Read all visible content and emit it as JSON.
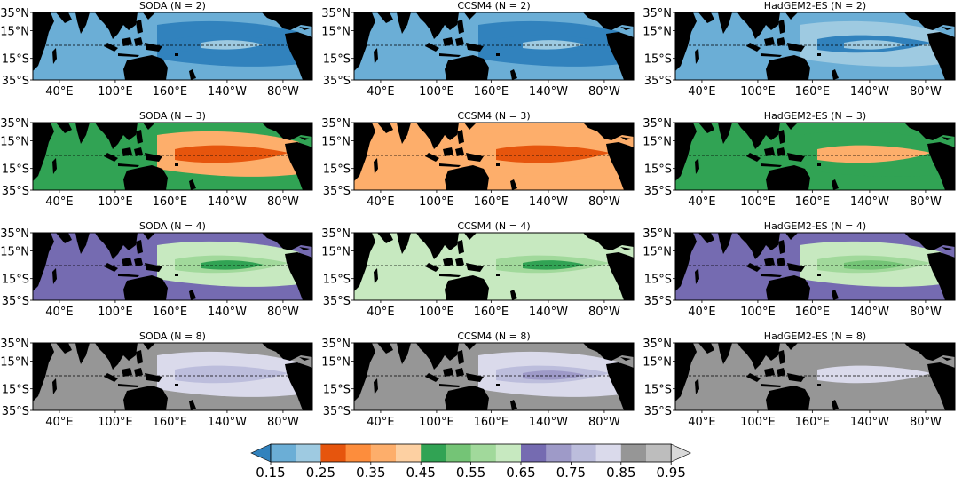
{
  "chart_data": {
    "type": "heatmap",
    "rows": [
      {
        "N": 2,
        "titles": [
          "SODA (N = 2)",
          "CCSM4 (N = 2)",
          "HadGEM2-ES (N = 2)"
        ],
        "base_level": [
          1,
          1,
          1
        ],
        "features": [
          [
            0,
            0,
            2
          ],
          [
            0,
            0,
            2
          ],
          [
            2,
            0,
            2
          ]
        ]
      },
      {
        "N": 3,
        "titles": [
          "SODA (N = 3)",
          "CCSM4 (N = 3)",
          "HadGEM2-ES (N = 3)"
        ],
        "base_level": [
          7,
          5,
          7
        ],
        "features": [
          [
            5,
            3,
            3
          ],
          [
            5,
            3,
            3
          ],
          [
            7,
            5,
            5
          ]
        ]
      },
      {
        "N": 4,
        "titles": [
          "SODA (N = 4)",
          "CCSM4 (N = 4)",
          "HadGEM2-ES (N = 4)"
        ],
        "base_level": [
          11,
          10,
          11
        ],
        "features": [
          [
            10,
            9,
            7
          ],
          [
            10,
            9,
            7
          ],
          [
            10,
            9,
            8
          ]
        ]
      },
      {
        "N": 8,
        "titles": [
          "SODA (N = 8)",
          "CCSM4 (N = 8)",
          "HadGEM2-ES (N = 8)"
        ],
        "base_level": [
          15,
          15,
          15
        ],
        "features": [
          [
            14,
            13,
            13
          ],
          [
            14,
            13,
            12
          ],
          [
            15,
            14,
            14
          ]
        ]
      }
    ],
    "yticks": [
      "35°N",
      "15°N",
      "15°S",
      "35°S"
    ],
    "xticks": [
      "40°E",
      "100°E",
      "160°E",
      "140°W",
      "80°W"
    ],
    "colorbar": {
      "ticks": [
        "0.15",
        "0.25",
        "0.35",
        "0.45",
        "0.55",
        "0.65",
        "0.75",
        "0.85",
        "0.95"
      ],
      "colors": [
        "#3182bd",
        "#6baed6",
        "#9ecae1",
        "#e6550d",
        "#fd8d3c",
        "#fdae6b",
        "#fdd0a2",
        "#31a354",
        "#74c476",
        "#a1d99b",
        "#c7e9c0",
        "#756bb1",
        "#9e9ac8",
        "#bcbddc",
        "#dadaeb",
        "#969696",
        "#bdbdbd",
        "#d9d9d9"
      ],
      "extend": "both"
    },
    "colors": {
      "land": "#000000",
      "equator_line": "#000000"
    }
  }
}
